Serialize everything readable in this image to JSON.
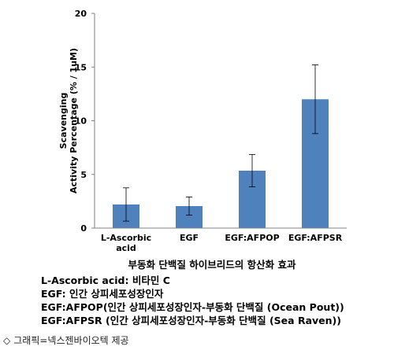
{
  "chart_data": {
    "type": "bar",
    "categories": [
      "L-Ascorbic acid",
      "EGF",
      "EGF:AFPOP",
      "EGF:AFPSR"
    ],
    "category_lines": [
      [
        "L-Ascorbic",
        "acid"
      ],
      [
        "EGF"
      ],
      [
        "EGF:AFPOP"
      ],
      [
        "EGF:AFPSR"
      ]
    ],
    "values": [
      2.2,
      2.05,
      5.35,
      12.0
    ],
    "error": [
      1.55,
      0.85,
      1.5,
      3.2
    ],
    "ylabel_lines": [
      "Scavenging",
      "Activity Percentage (% / 1uM)"
    ],
    "ylim": [
      0,
      20
    ],
    "yticks": [
      0,
      5,
      10,
      15,
      20
    ],
    "grid": false,
    "bar_color": "#4f81bd"
  },
  "caption": {
    "title": "부동화 단백질 하이브리드의 항산화 효과",
    "legend_lines": [
      "L-Ascorbic acid: 비타민 C",
      "EGF: 인간 상피세포성장인자",
      "EGF:AFPOP(인간 상피세포성장인자-부동화 단백질 (Ocean Pout))",
      "EGF:AFPSR (인간 상피세포성장인자-부동화 단백질 (Sea Raven))"
    ]
  },
  "credit": {
    "icon": "diamond-outline-icon",
    "diamond": "◇",
    "text": "그래픽=넥스젠바이오텍 제공"
  }
}
